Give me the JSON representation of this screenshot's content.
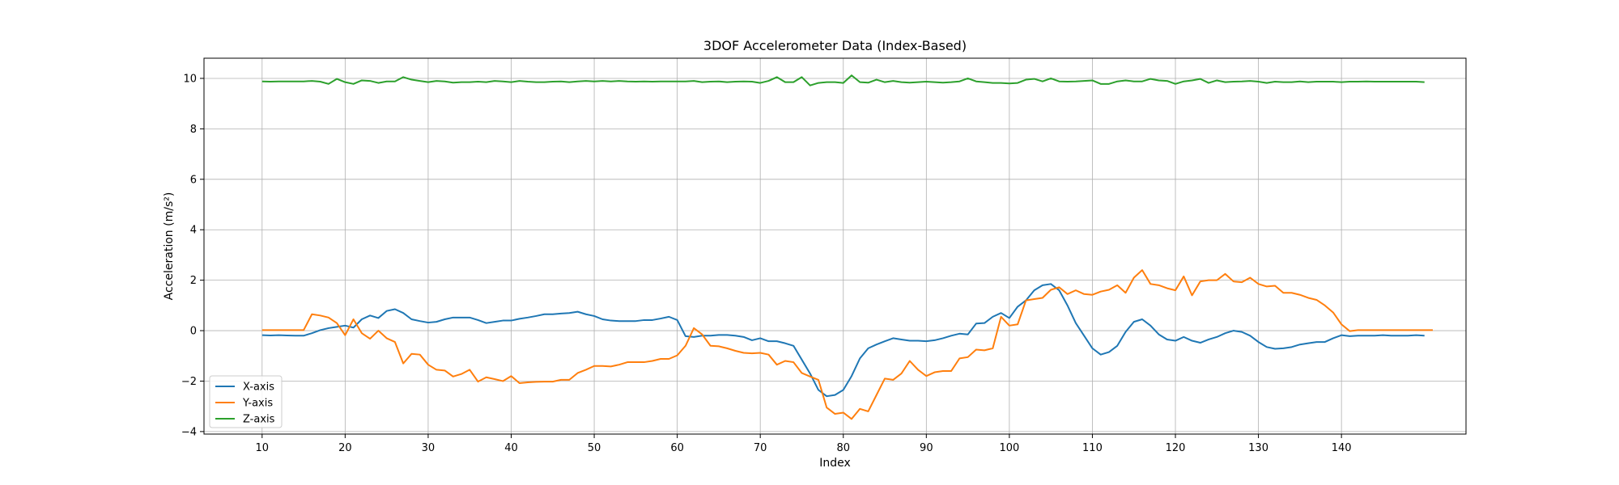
{
  "chart_data": {
    "type": "line",
    "title": "3DOF Accelerometer Data (Index-Based)",
    "xlabel": "Index",
    "ylabel": "Acceleration (m/s²)",
    "xlim": [
      3,
      155
    ],
    "ylim": [
      -4.1,
      10.8
    ],
    "xticks": [
      10,
      20,
      30,
      40,
      50,
      60,
      70,
      80,
      90,
      100,
      110,
      120,
      130,
      140
    ],
    "yticks": [
      -4,
      -2,
      0,
      2,
      4,
      6,
      8,
      10
    ],
    "grid": true,
    "legend_position": "lower-left",
    "x_start": 10,
    "series": [
      {
        "name": "X-axis",
        "color": "#1f77b4",
        "values": [
          -0.18,
          -0.19,
          -0.18,
          -0.19,
          -0.2,
          -0.2,
          -0.1,
          0.02,
          0.1,
          0.15,
          0.2,
          0.12,
          0.45,
          0.6,
          0.5,
          0.78,
          0.85,
          0.7,
          0.45,
          0.38,
          0.32,
          0.35,
          0.45,
          0.52,
          0.52,
          0.52,
          0.42,
          0.3,
          0.35,
          0.4,
          0.4,
          0.47,
          0.52,
          0.58,
          0.65,
          0.65,
          0.68,
          0.7,
          0.75,
          0.65,
          0.58,
          0.45,
          0.4,
          0.38,
          0.38,
          0.38,
          0.42,
          0.42,
          0.48,
          0.55,
          0.42,
          -0.22,
          -0.25,
          -0.2,
          -0.2,
          -0.17,
          -0.17,
          -0.2,
          -0.25,
          -0.38,
          -0.3,
          -0.42,
          -0.42,
          -0.5,
          -0.6,
          -1.15,
          -1.7,
          -2.35,
          -2.6,
          -2.55,
          -2.35,
          -1.8,
          -1.1,
          -0.7,
          -0.55,
          -0.42,
          -0.3,
          -0.35,
          -0.4,
          -0.4,
          -0.42,
          -0.38,
          -0.3,
          -0.2,
          -0.12,
          -0.15,
          0.28,
          0.3,
          0.55,
          0.7,
          0.5,
          0.95,
          1.2,
          1.6,
          1.8,
          1.85,
          1.6,
          1.0,
          0.3,
          -0.2,
          -0.7,
          -0.95,
          -0.85,
          -0.6,
          -0.05,
          0.35,
          0.45,
          0.2,
          -0.15,
          -0.35,
          -0.4,
          -0.25,
          -0.4,
          -0.48,
          -0.35,
          -0.25,
          -0.1,
          0.0,
          -0.05,
          -0.2,
          -0.45,
          -0.65,
          -0.72,
          -0.7,
          -0.65,
          -0.55,
          -0.5,
          -0.45,
          -0.45,
          -0.3,
          -0.18,
          -0.22,
          -0.2,
          -0.2,
          -0.2,
          -0.18,
          -0.2,
          -0.2,
          -0.2,
          -0.18,
          -0.2
        ]
      },
      {
        "name": "Y-axis",
        "color": "#ff7f0e",
        "values": [
          0.02,
          0.02,
          0.02,
          0.02,
          0.02,
          0.02,
          0.65,
          0.6,
          0.52,
          0.3,
          -0.18,
          0.45,
          -0.1,
          -0.32,
          0.0,
          -0.3,
          -0.45,
          -1.3,
          -0.92,
          -0.95,
          -1.35,
          -1.55,
          -1.58,
          -1.82,
          -1.72,
          -1.55,
          -2.02,
          -1.85,
          -1.92,
          -2.0,
          -1.8,
          -2.08,
          -2.05,
          -2.03,
          -2.02,
          -2.02,
          -1.95,
          -1.95,
          -1.68,
          -1.55,
          -1.4,
          -1.4,
          -1.42,
          -1.35,
          -1.25,
          -1.25,
          -1.25,
          -1.2,
          -1.12,
          -1.12,
          -0.98,
          -0.6,
          0.1,
          -0.15,
          -0.6,
          -0.62,
          -0.7,
          -0.8,
          -0.88,
          -0.9,
          -0.88,
          -0.95,
          -1.35,
          -1.2,
          -1.25,
          -1.68,
          -1.82,
          -1.95,
          -3.05,
          -3.3,
          -3.25,
          -3.5,
          -3.1,
          -3.2,
          -2.55,
          -1.9,
          -1.95,
          -1.7,
          -1.2,
          -1.55,
          -1.8,
          -1.65,
          -1.6,
          -1.6,
          -1.1,
          -1.05,
          -0.75,
          -0.78,
          -0.7,
          0.55,
          0.2,
          0.25,
          1.2,
          1.25,
          1.3,
          1.62,
          1.72,
          1.45,
          1.6,
          1.45,
          1.42,
          1.55,
          1.62,
          1.8,
          1.5,
          2.1,
          2.4,
          1.85,
          1.8,
          1.68,
          1.6,
          2.15,
          1.4,
          1.95,
          2.0,
          2.0,
          2.25,
          1.95,
          1.92,
          2.1,
          1.85,
          1.75,
          1.78,
          1.5,
          1.5,
          1.42,
          1.3,
          1.22,
          1.0,
          0.72,
          0.25,
          -0.02,
          0.02,
          0.02,
          0.02,
          0.02,
          0.02,
          0.02,
          0.02,
          0.02,
          0.02,
          0.02
        ]
      },
      {
        "name": "Z-axis",
        "color": "#2ca02c",
        "values": [
          9.88,
          9.87,
          9.88,
          9.88,
          9.88,
          9.88,
          9.9,
          9.87,
          9.78,
          9.98,
          9.85,
          9.78,
          9.92,
          9.9,
          9.82,
          9.88,
          9.88,
          10.05,
          9.95,
          9.9,
          9.85,
          9.9,
          9.88,
          9.83,
          9.85,
          9.85,
          9.87,
          9.85,
          9.9,
          9.88,
          9.85,
          9.9,
          9.87,
          9.85,
          9.85,
          9.87,
          9.88,
          9.85,
          9.88,
          9.9,
          9.88,
          9.9,
          9.88,
          9.9,
          9.88,
          9.87,
          9.88,
          9.87,
          9.88,
          9.88,
          9.88,
          9.88,
          9.9,
          9.85,
          9.87,
          9.88,
          9.85,
          9.87,
          9.88,
          9.87,
          9.82,
          9.9,
          10.05,
          9.85,
          9.85,
          10.05,
          9.72,
          9.82,
          9.85,
          9.85,
          9.82,
          10.12,
          9.85,
          9.83,
          9.95,
          9.85,
          9.9,
          9.85,
          9.83,
          9.85,
          9.87,
          9.85,
          9.83,
          9.85,
          9.88,
          10.0,
          9.88,
          9.85,
          9.82,
          9.82,
          9.8,
          9.82,
          9.95,
          9.98,
          9.88,
          10.0,
          9.88,
          9.87,
          9.88,
          9.9,
          9.92,
          9.78,
          9.78,
          9.88,
          9.92,
          9.88,
          9.88,
          9.98,
          9.92,
          9.9,
          9.78,
          9.88,
          9.92,
          9.98,
          9.82,
          9.92,
          9.85,
          9.87,
          9.88,
          9.9,
          9.87,
          9.82,
          9.87,
          9.85,
          9.85,
          9.88,
          9.85,
          9.87,
          9.87,
          9.87,
          9.85,
          9.87,
          9.87,
          9.88,
          9.87,
          9.87,
          9.87,
          9.87,
          9.87,
          9.87,
          9.85
        ]
      }
    ]
  }
}
